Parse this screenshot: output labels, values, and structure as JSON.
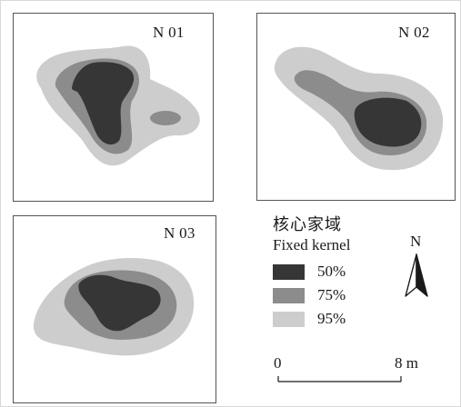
{
  "colors": {
    "core50": "#363636",
    "core75": "#8c8c8c",
    "core95": "#cdcdcd",
    "panel_border": "#555555",
    "background": "#ffffff"
  },
  "panels": [
    {
      "label": "N 01"
    },
    {
      "label": "N 02"
    },
    {
      "label": "N 03"
    }
  ],
  "legend": {
    "title": "核心家域",
    "subtitle": "Fixed kernel",
    "items": [
      {
        "label": "50%",
        "color": "#363636"
      },
      {
        "label": "75%",
        "color": "#8c8c8c"
      },
      {
        "label": "95%",
        "color": "#cdcdcd"
      }
    ]
  },
  "north_arrow": {
    "label": "N"
  },
  "scale_bar": {
    "start_label": "0",
    "end_label": "8 m"
  }
}
